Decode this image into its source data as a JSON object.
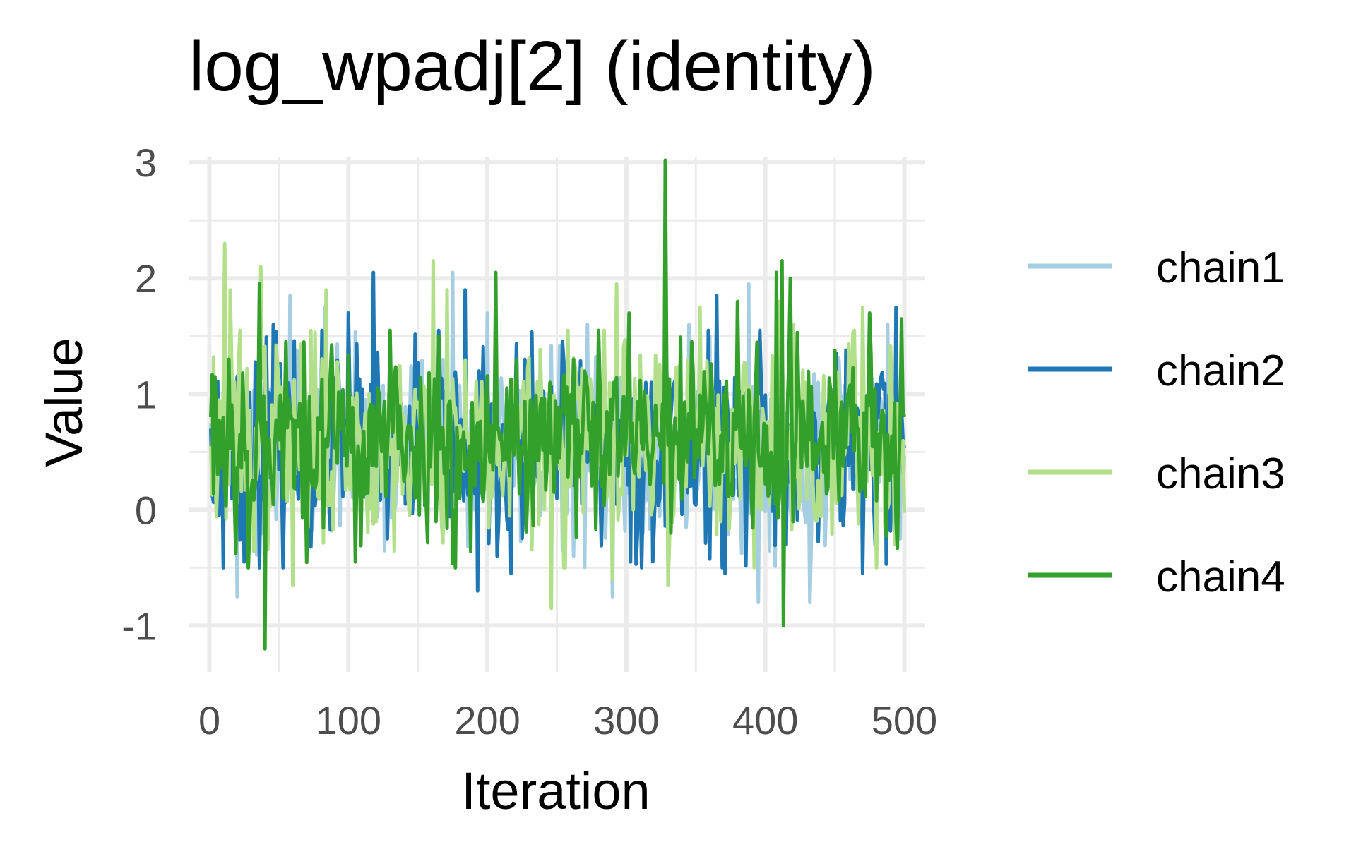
{
  "chart_data": {
    "type": "line",
    "title": "log_wpadj[2] (identity)",
    "xlabel": "Iteration",
    "ylabel": "Value",
    "xlim": [
      -15,
      515
    ],
    "ylim": [
      -1.4,
      3.05
    ],
    "x_ticks": [
      0,
      100,
      200,
      300,
      400,
      500
    ],
    "x_tick_labels": [
      "0",
      "100",
      "200",
      "300",
      "400",
      "500"
    ],
    "y_ticks": [
      -1,
      0,
      1,
      2,
      3
    ],
    "y_tick_labels": [
      "-1",
      "0",
      "1",
      "2",
      "3"
    ],
    "grid": true,
    "legend": {
      "position": "right",
      "entries": [
        "chain1",
        "chain2",
        "chain3",
        "chain4"
      ]
    },
    "iterations": 500,
    "series": [
      {
        "name": "chain1",
        "color": "#a6cee3",
        "start": 0.75,
        "mean": 0.5,
        "sd": 0.38,
        "seed": 11,
        "spikes": [
          [
            11,
            1.3
          ],
          [
            20,
            -0.75
          ],
          [
            58,
            1.85
          ],
          [
            83,
            1.75
          ],
          [
            146,
            1.2
          ],
          [
            175,
            2.05
          ],
          [
            200,
            1.7
          ],
          [
            262,
            -0.4
          ],
          [
            272,
            1.6
          ],
          [
            290,
            -0.75
          ],
          [
            345,
            1.6
          ],
          [
            360,
            1.5
          ],
          [
            388,
            1.95
          ],
          [
            395,
            -0.8
          ],
          [
            432,
            -0.8
          ],
          [
            488,
            1.6
          ],
          [
            497,
            -0.25
          ]
        ]
      },
      {
        "name": "chain2",
        "color": "#1f78b4",
        "start": 0.7,
        "mean": 0.55,
        "sd": 0.4,
        "seed": 23,
        "spikes": [
          [
            10,
            -0.5
          ],
          [
            25,
            -0.45
          ],
          [
            46,
            1.6
          ],
          [
            100,
            1.7
          ],
          [
            118,
            2.05
          ],
          [
            128,
            -0.25
          ],
          [
            184,
            1.9
          ],
          [
            193,
            -0.7
          ],
          [
            207,
            -0.4
          ],
          [
            217,
            -0.55
          ],
          [
            227,
            1.3
          ],
          [
            300,
            1.35
          ],
          [
            303,
            -0.45
          ],
          [
            318,
            1.1
          ],
          [
            359,
            1.55
          ],
          [
            365,
            1.85
          ],
          [
            371,
            -0.55
          ],
          [
            396,
            1.55
          ],
          [
            415,
            -0.3
          ],
          [
            470,
            -0.55
          ],
          [
            494,
            1.75
          ]
        ]
      },
      {
        "name": "chain3",
        "color": "#b2df8a",
        "start": 0.55,
        "mean": 0.6,
        "sd": 0.42,
        "seed": 37,
        "spikes": [
          [
            11,
            2.3
          ],
          [
            15,
            1.9
          ],
          [
            22,
            1.55
          ],
          [
            37,
            2.1
          ],
          [
            60,
            -0.65
          ],
          [
            84,
            1.9
          ],
          [
            161,
            2.15
          ],
          [
            171,
            1.9
          ],
          [
            246,
            -0.85
          ],
          [
            255,
            -0.5
          ],
          [
            290,
            -0.6
          ],
          [
            293,
            1.95
          ],
          [
            330,
            -0.65
          ],
          [
            353,
            1.75
          ],
          [
            410,
            1.8
          ],
          [
            420,
            1.6
          ],
          [
            470,
            1.75
          ],
          [
            480,
            -0.5
          ]
        ]
      },
      {
        "name": "chain4",
        "color": "#33a02c",
        "start": 0.8,
        "mean": 0.6,
        "sd": 0.38,
        "seed": 53,
        "spikes": [
          [
            4,
            1.15
          ],
          [
            14,
            1.3
          ],
          [
            28,
            -0.5
          ],
          [
            36,
            1.95
          ],
          [
            40,
            -1.2
          ],
          [
            68,
            1.45
          ],
          [
            105,
            -0.45
          ],
          [
            130,
            1.55
          ],
          [
            177,
            -0.5
          ],
          [
            206,
            2.05
          ],
          [
            221,
            1.3
          ],
          [
            262,
            1.3
          ],
          [
            302,
            1.7
          ],
          [
            328,
            3.02
          ],
          [
            332,
            -0.2
          ],
          [
            380,
            1.8
          ],
          [
            408,
            2.05
          ],
          [
            412,
            2.15
          ],
          [
            413,
            -1.0
          ],
          [
            418,
            2.0
          ],
          [
            475,
            1.7
          ],
          [
            498,
            1.65
          ]
        ]
      }
    ]
  }
}
